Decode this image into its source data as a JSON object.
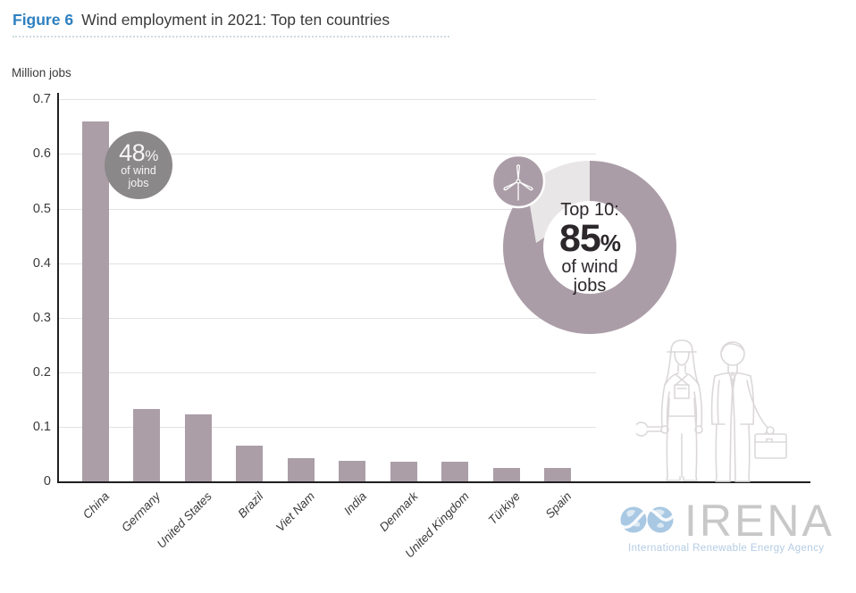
{
  "figure": {
    "label": "Figure 6",
    "title": "Wind employment in 2021: Top ten countries"
  },
  "chart_data": {
    "type": "bar",
    "title": "Wind employment in 2021: Top ten countries",
    "ylabel": "Million jobs",
    "xlabel": "",
    "ylim": [
      0,
      0.7
    ],
    "yticks": [
      0.7,
      0.6,
      0.5,
      0.4,
      0.3,
      0.2,
      0.1,
      0
    ],
    "grid": true,
    "legend_position": "none",
    "categories": [
      "China",
      "Germany",
      "United States",
      "Brazil",
      "Viet Nam",
      "India",
      "Denmark",
      "United Kingdom",
      "Türkiye",
      "Spain"
    ],
    "values": [
      0.66,
      0.132,
      0.123,
      0.065,
      0.043,
      0.037,
      0.036,
      0.036,
      0.025,
      0.024
    ],
    "bar_color": "#ab9ea7"
  },
  "annotations": {
    "china_badge": {
      "value": "48",
      "percent_sign": "%",
      "line2": "of wind",
      "line3": "jobs"
    },
    "donut": {
      "label_top": "Top 10:",
      "value": "85",
      "percent_sign": "%",
      "line2": "of wind",
      "line3": "jobs",
      "percentage": 85
    }
  },
  "icons": {
    "turbine": "wind-turbine-icon",
    "workers": "worker-and-businessman-illustration",
    "logo_globe": "irena-globes-infinity-icon"
  },
  "logo": {
    "name": "IRENA",
    "subtitle": "International Renewable Energy Agency"
  },
  "colors": {
    "figure_label_blue": "#2e80c0",
    "title_ink": "#3a3a3a",
    "bar": "#ab9ea7",
    "donut": "#ab9da7",
    "donut_light": "#e8e6e7",
    "badge": "#8b8889",
    "grid": "#e4e2e3",
    "axis": "#1f1f1f",
    "line_art": "#dcd8da",
    "logo_text": "#c9c8c8",
    "logo_blue": "#a9c8e3",
    "logo_subtitle": "#b4cce4"
  }
}
